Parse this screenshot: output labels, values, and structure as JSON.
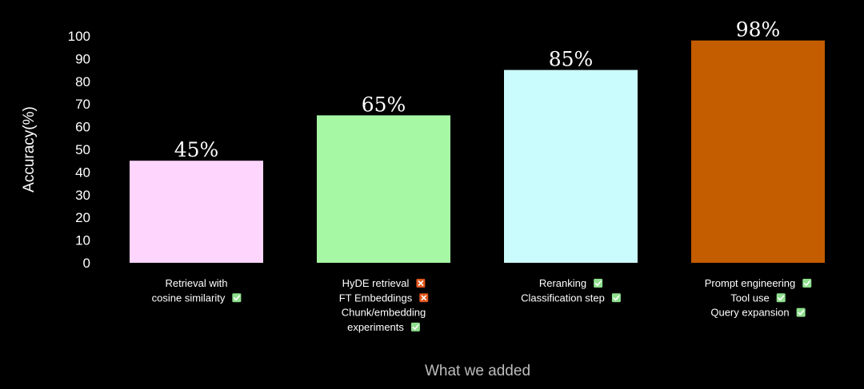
{
  "chart_data": {
    "type": "bar",
    "title": "",
    "xlabel": "What we added",
    "ylabel": "Accuracy(%)",
    "ylim": [
      0,
      100
    ],
    "yticks": [
      0,
      10,
      20,
      30,
      40,
      50,
      60,
      70,
      80,
      90,
      100
    ],
    "grid": false,
    "legend": "none",
    "categories": [
      {
        "value": 45,
        "label": "45%",
        "color": "#fdd5fd",
        "lines": [
          {
            "text": "Retrieval with",
            "status": null
          },
          {
            "text": "cosine similarity",
            "status": "check"
          }
        ]
      },
      {
        "value": 65,
        "label": "65%",
        "color": "#a7f8a5",
        "lines": [
          {
            "text": "HyDE retrieval",
            "status": "cross"
          },
          {
            "text": "FT Embeddings",
            "status": "cross"
          },
          {
            "text": "Chunk/embedding",
            "status": null
          },
          {
            "text": "experiments",
            "status": "check"
          }
        ]
      },
      {
        "value": 85,
        "label": "85%",
        "color": "#cbfcfd",
        "lines": [
          {
            "text": "Reranking",
            "status": "check"
          },
          {
            "text": "Classification step",
            "status": "check"
          }
        ]
      },
      {
        "value": 98,
        "label": "98%",
        "color": "#c45c00",
        "lines": [
          {
            "text": "Prompt engineering",
            "status": "check"
          },
          {
            "text": "Tool use",
            "status": "check"
          },
          {
            "text": "Query expansion",
            "status": "check"
          }
        ]
      }
    ],
    "status_colors": {
      "check": "#8fe08e",
      "cross": "#e0561c"
    },
    "status_icons": {
      "check": "check-icon",
      "cross": "cross-icon"
    }
  }
}
